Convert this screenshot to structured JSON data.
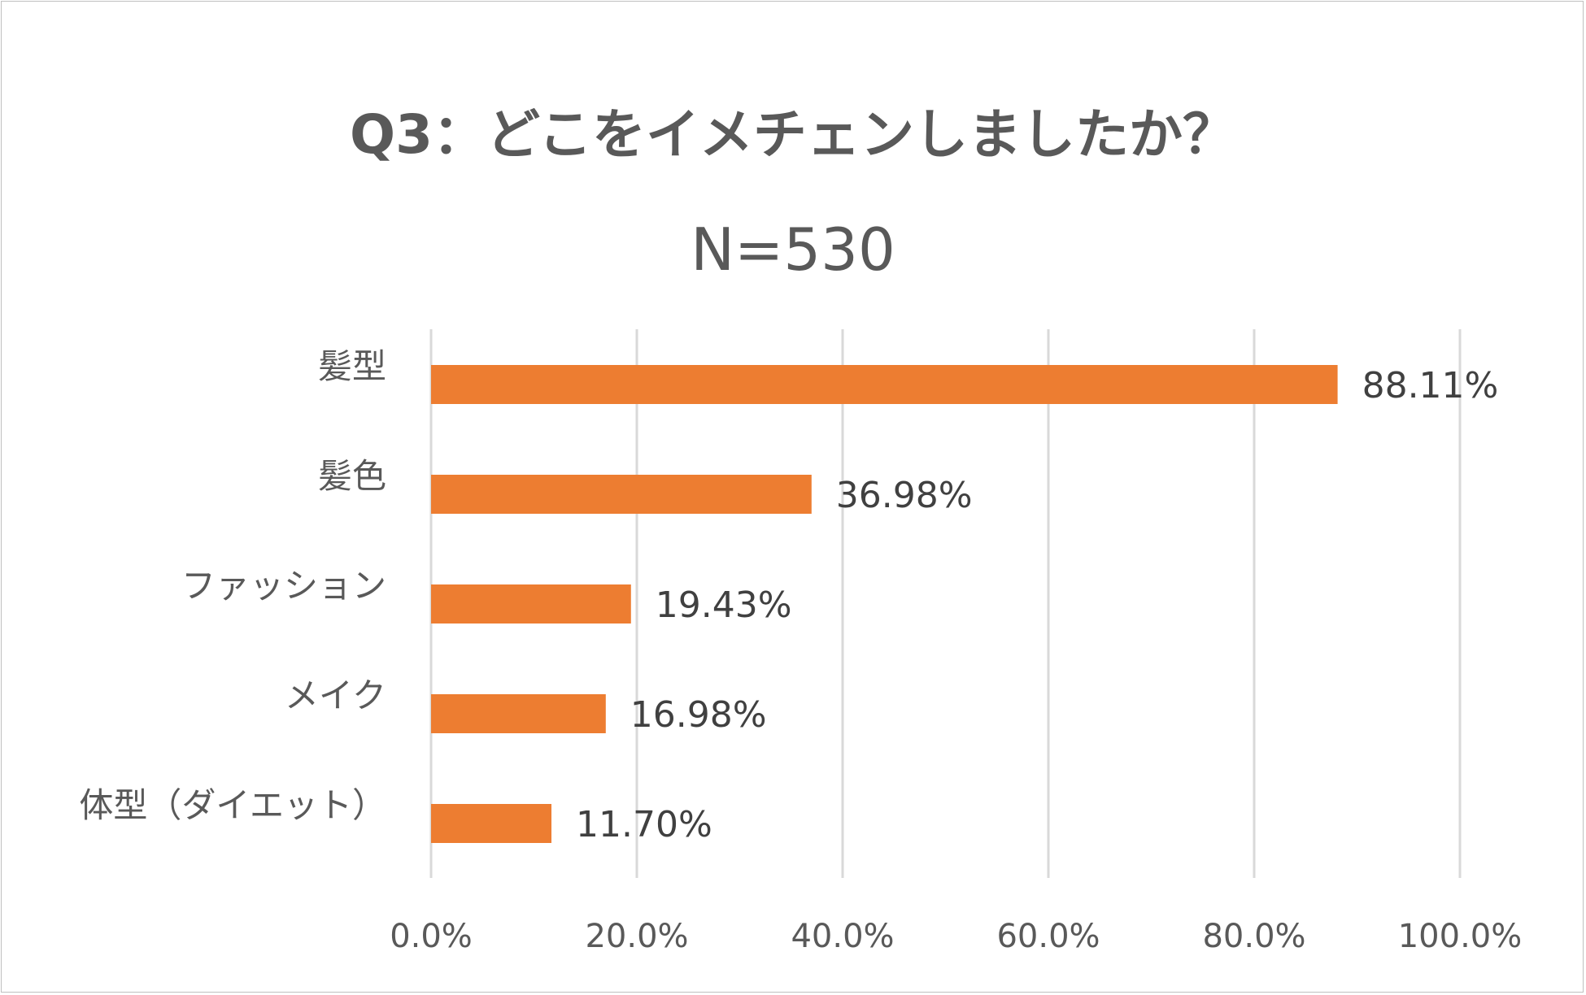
{
  "chart_data": {
    "type": "bar",
    "orientation": "horizontal",
    "title": "Q3：どこをイメチェンしましたか？",
    "subtitle": "N=530",
    "categories": [
      "髪型",
      "髪色",
      "ファッション",
      "メイク",
      "体型（ダイエット）"
    ],
    "values": [
      88.11,
      36.98,
      19.43,
      16.98,
      11.7
    ],
    "value_labels": [
      "88.11%",
      "36.98%",
      "19.43%",
      "16.98%",
      "11.70%"
    ],
    "xlim": [
      0,
      100
    ],
    "ticks": [
      0,
      20,
      40,
      60,
      80,
      100
    ],
    "tick_labels": [
      "0.0%",
      "20.0%",
      "40.0%",
      "60.0%",
      "80.0%",
      "100.0%"
    ],
    "xlabel": "",
    "ylabel": "",
    "grid": true,
    "bar_color": "#ED7D31",
    "grid_color": "#D9D9D9"
  }
}
